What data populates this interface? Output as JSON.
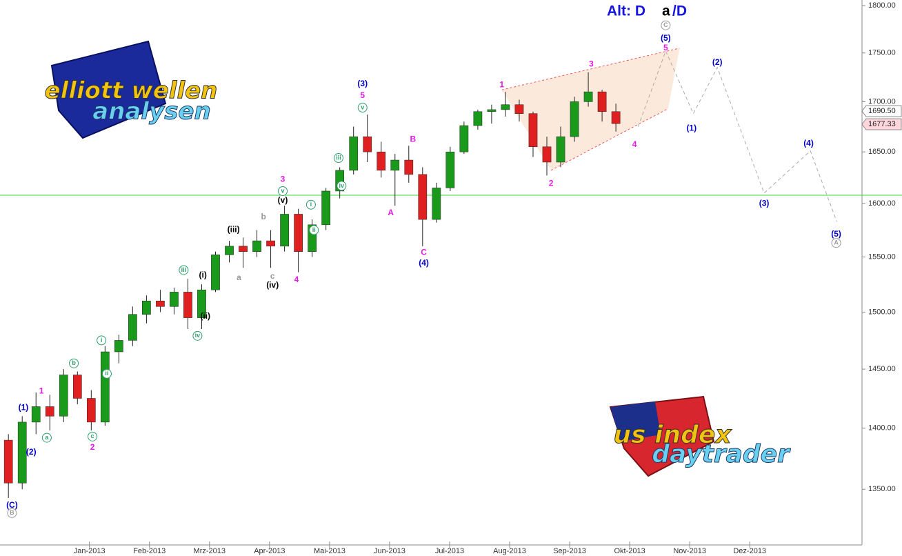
{
  "chart_data": {
    "type": "candlestick",
    "log_y": true,
    "xlim": [
      -0.49,
      13.87
    ],
    "ylim": [
      1306,
      1806
    ],
    "xticks": [
      {
        "value": 1,
        "label": "Jan-2013"
      },
      {
        "value": 2,
        "label": "Feb-2013"
      },
      {
        "value": 3,
        "label": "Mrz-2013"
      },
      {
        "value": 4,
        "label": "Apr-2013"
      },
      {
        "value": 5,
        "label": "Mai-2013"
      },
      {
        "value": 6,
        "label": "Jun-2013"
      },
      {
        "value": 7,
        "label": "Jul-2013"
      },
      {
        "value": 8,
        "label": "Aug-2013"
      },
      {
        "value": 9,
        "label": "Sep-2013"
      },
      {
        "value": 10,
        "label": "Okt-2013"
      },
      {
        "value": 11,
        "label": "Nov-2013"
      },
      {
        "value": 12,
        "label": "Dez-2013"
      }
    ],
    "yticks": [
      {
        "value": 1350,
        "label": "1350.00"
      },
      {
        "value": 1400,
        "label": "1400.00"
      },
      {
        "value": 1450,
        "label": "1450.00"
      },
      {
        "value": 1500,
        "label": "1500.00"
      },
      {
        "value": 1550,
        "label": "1550.00"
      },
      {
        "value": 1600,
        "label": "1600.00"
      },
      {
        "value": 1650,
        "label": "1650.00"
      },
      {
        "value": 1700,
        "label": "1700.00"
      },
      {
        "value": 1750,
        "label": "1750.00"
      },
      {
        "value": 1800,
        "label": "1800.00"
      }
    ],
    "up_color": "#1a9a1a",
    "down_color": "#e02020",
    "candles": {
      "x": [
        -0.35,
        -0.12,
        0.11,
        0.34,
        0.57,
        0.8,
        1.03,
        1.26,
        1.49,
        1.72,
        1.95,
        2.18,
        2.41,
        2.64,
        2.87,
        3.1,
        3.33,
        3.56,
        3.79,
        4.02,
        4.25,
        4.48,
        4.71,
        4.94,
        5.17,
        5.4,
        5.63,
        5.86,
        6.09,
        6.32,
        6.55,
        6.78,
        7.01,
        7.24,
        7.47,
        7.7,
        7.93,
        8.16,
        8.39,
        8.62,
        8.85,
        9.08,
        9.31,
        9.54,
        9.77
      ],
      "open": [
        1390,
        1355,
        1405,
        1418,
        1410,
        1445,
        1425,
        1405,
        1465,
        1475,
        1498,
        1510,
        1505,
        1518,
        1495,
        1520,
        1552,
        1560,
        1555,
        1565,
        1560,
        1590,
        1555,
        1580,
        1612,
        1632,
        1665,
        1650,
        1632,
        1642,
        1628,
        1585,
        1615,
        1650,
        1676,
        1690,
        1692,
        1697,
        1688,
        1655,
        1640,
        1665,
        1700,
        1710,
        1690
      ],
      "high": [
        1395,
        1410,
        1430,
        1428,
        1450,
        1448,
        1432,
        1470,
        1480,
        1505,
        1515,
        1520,
        1522,
        1530,
        1525,
        1555,
        1565,
        1568,
        1575,
        1575,
        1598,
        1595,
        1585,
        1615,
        1635,
        1675,
        1687,
        1660,
        1648,
        1656,
        1635,
        1620,
        1655,
        1680,
        1692,
        1697,
        1710,
        1702,
        1690,
        1665,
        1675,
        1705,
        1730,
        1712,
        1698
      ],
      "low": [
        1343,
        1350,
        1395,
        1398,
        1405,
        1420,
        1398,
        1402,
        1455,
        1470,
        1490,
        1500,
        1498,
        1485,
        1485,
        1518,
        1545,
        1540,
        1550,
        1540,
        1555,
        1536,
        1550,
        1575,
        1605,
        1628,
        1640,
        1625,
        1598,
        1620,
        1560,
        1582,
        1612,
        1648,
        1672,
        1678,
        1685,
        1680,
        1645,
        1627,
        1635,
        1660,
        1695,
        1680,
        1670
      ],
      "close": [
        1355,
        1405,
        1418,
        1410,
        1445,
        1425,
        1405,
        1465,
        1475,
        1498,
        1510,
        1505,
        1518,
        1495,
        1520,
        1552,
        1560,
        1555,
        1565,
        1560,
        1590,
        1555,
        1580,
        1612,
        1632,
        1665,
        1650,
        1632,
        1642,
        1628,
        1585,
        1615,
        1650,
        1676,
        1690,
        1692,
        1697,
        1688,
        1655,
        1640,
        1665,
        1700,
        1710,
        1690,
        1678
      ]
    },
    "hline": {
      "value": 1608,
      "color": "#33dd33"
    },
    "projection": {
      "color": "#aaaaaa",
      "x": [
        10.14,
        10.6,
        11.06,
        11.46,
        12.24,
        13.01,
        13.45
      ],
      "y": [
        1675,
        1752,
        1688,
        1735,
        1610,
        1651,
        1583
      ]
    },
    "wedge": {
      "color": "#ee5555",
      "fill": "#fbe9dc",
      "upper_x": [
        7.87,
        10.83
      ],
      "upper_y": [
        1712,
        1755
      ],
      "lower_x": [
        8.69,
        10.64
      ],
      "lower_y": [
        1632,
        1693
      ]
    },
    "price_markers": [
      {
        "value": 1690.5,
        "label": "1690.50",
        "color": "#ffffff"
      },
      {
        "value": 1677.33,
        "label": "1677.33",
        "color": "#ffd6dc"
      }
    ],
    "header_labels": [
      {
        "text": "Alt: D",
        "color": "#1515e0"
      },
      {
        "text": "a",
        "color": "#000000"
      },
      {
        "text": "/D",
        "color": "#1515e0"
      }
    ],
    "logos": [
      "elliott wellen",
      "analysen",
      "us index",
      "daytrader"
    ],
    "annotations": [
      {
        "text": "(C)",
        "x": -0.29,
        "y": 1337,
        "color": "#0000cc",
        "circled": false
      },
      {
        "text": "B",
        "x": -0.29,
        "y": 1331,
        "color": "#999999",
        "circled": true
      },
      {
        "text": "(1)",
        "x": -0.1,
        "y": 1417,
        "color": "#0000cc",
        "circled": false
      },
      {
        "text": "(2)",
        "x": 0.03,
        "y": 1380,
        "color": "#0000cc",
        "circled": false
      },
      {
        "text": "1",
        "x": 0.2,
        "y": 1431,
        "color": "#e619e6",
        "circled": false
      },
      {
        "text": "a",
        "x": 0.29,
        "y": 1392,
        "color": "#2e9e6b",
        "circled": true
      },
      {
        "text": "b",
        "x": 0.74,
        "y": 1455,
        "color": "#2e9e6b",
        "circled": true
      },
      {
        "text": "c",
        "x": 1.05,
        "y": 1393,
        "color": "#2e9e6b",
        "circled": true
      },
      {
        "text": "2",
        "x": 1.05,
        "y": 1384,
        "color": "#e619e6",
        "circled": false
      },
      {
        "text": "i",
        "x": 1.2,
        "y": 1475,
        "color": "#2e9e6b",
        "circled": true
      },
      {
        "text": "ii",
        "x": 1.29,
        "y": 1446,
        "color": "#2e9e6b",
        "circled": true
      },
      {
        "text": "iii",
        "x": 2.57,
        "y": 1538,
        "color": "#2e9e6b",
        "circled": true
      },
      {
        "text": "(i)",
        "x": 2.89,
        "y": 1533,
        "color": "#000000",
        "circled": false
      },
      {
        "text": "(ii)",
        "x": 2.93,
        "y": 1496,
        "color": "#000000",
        "circled": false
      },
      {
        "text": "iv",
        "x": 2.8,
        "y": 1479,
        "color": "#2e9e6b",
        "circled": true
      },
      {
        "text": "(iii)",
        "x": 3.4,
        "y": 1575,
        "color": "#000000",
        "circled": false
      },
      {
        "text": "a",
        "x": 3.49,
        "y": 1531,
        "color": "#999999",
        "circled": false
      },
      {
        "text": "b",
        "x": 3.9,
        "y": 1587,
        "color": "#999999",
        "circled": false
      },
      {
        "text": "c",
        "x": 4.05,
        "y": 1532,
        "color": "#999999",
        "circled": false
      },
      {
        "text": "(iv)",
        "x": 4.05,
        "y": 1524,
        "color": "#000000",
        "circled": false
      },
      {
        "text": "3",
        "x": 4.22,
        "y": 1623,
        "color": "#e619e6",
        "circled": false
      },
      {
        "text": "v",
        "x": 4.22,
        "y": 1612,
        "color": "#2e9e6b",
        "circled": true
      },
      {
        "text": "(v)",
        "x": 4.22,
        "y": 1603,
        "color": "#000000",
        "circled": false
      },
      {
        "text": "4",
        "x": 4.45,
        "y": 1529,
        "color": "#e619e6",
        "circled": false
      },
      {
        "text": "i",
        "x": 4.69,
        "y": 1599,
        "color": "#2e9e6b",
        "circled": true
      },
      {
        "text": "ii",
        "x": 4.74,
        "y": 1575,
        "color": "#2e9e6b",
        "circled": true
      },
      {
        "text": "iii",
        "x": 5.15,
        "y": 1644,
        "color": "#2e9e6b",
        "circled": true
      },
      {
        "text": "iv",
        "x": 5.2,
        "y": 1617,
        "color": "#2e9e6b",
        "circled": true
      },
      {
        "text": "(3)",
        "x": 5.55,
        "y": 1718,
        "color": "#0000cc",
        "circled": false
      },
      {
        "text": "5",
        "x": 5.55,
        "y": 1706,
        "color": "#e619e6",
        "circled": false
      },
      {
        "text": "v",
        "x": 5.55,
        "y": 1694,
        "color": "#2e9e6b",
        "circled": true
      },
      {
        "text": "A",
        "x": 6.02,
        "y": 1591,
        "color": "#e619e6",
        "circled": false
      },
      {
        "text": "B",
        "x": 6.39,
        "y": 1662,
        "color": "#e619e6",
        "circled": false
      },
      {
        "text": "C",
        "x": 6.57,
        "y": 1554,
        "color": "#e619e6",
        "circled": false
      },
      {
        "text": "(4)",
        "x": 6.57,
        "y": 1544,
        "color": "#0000cc",
        "circled": false
      },
      {
        "text": "1",
        "x": 7.87,
        "y": 1717,
        "color": "#e619e6",
        "circled": false
      },
      {
        "text": "2",
        "x": 8.69,
        "y": 1619,
        "color": "#e619e6",
        "circled": false
      },
      {
        "text": "3",
        "x": 9.36,
        "y": 1738,
        "color": "#e619e6",
        "circled": false
      },
      {
        "text": "4",
        "x": 10.08,
        "y": 1657,
        "color": "#e619e6",
        "circled": false
      },
      {
        "text": "5",
        "x": 10.6,
        "y": 1755,
        "color": "#e619e6",
        "circled": false
      },
      {
        "text": "(5)",
        "x": 10.6,
        "y": 1765,
        "color": "#0000cc",
        "circled": false
      },
      {
        "text": "C",
        "x": 10.6,
        "y": 1779,
        "color": "#999999",
        "circled": true
      },
      {
        "text": "(1)",
        "x": 11.03,
        "y": 1673,
        "color": "#0000cc",
        "circled": false
      },
      {
        "text": "(2)",
        "x": 11.46,
        "y": 1740,
        "color": "#0000cc",
        "circled": false
      },
      {
        "text": "(3)",
        "x": 12.24,
        "y": 1600,
        "color": "#0000cc",
        "circled": false
      },
      {
        "text": "(4)",
        "x": 12.98,
        "y": 1658,
        "color": "#0000cc",
        "circled": false
      },
      {
        "text": "(5)",
        "x": 13.44,
        "y": 1571,
        "color": "#0000cc",
        "circled": false
      },
      {
        "text": "A",
        "x": 13.44,
        "y": 1563,
        "color": "#999999",
        "circled": true
      }
    ]
  }
}
